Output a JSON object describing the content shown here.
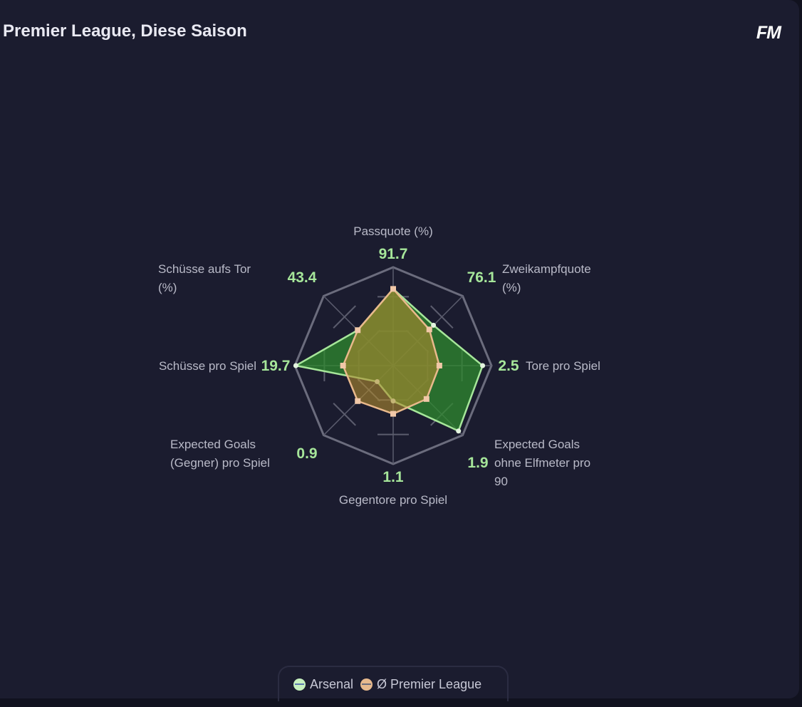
{
  "header": {
    "title": "Premier League, Diese Saison",
    "logo": "FM"
  },
  "chart_data": {
    "type": "radar",
    "axes": [
      {
        "label": [
          "Passquote (%)"
        ],
        "value": "91.7"
      },
      {
        "label": [
          "Zweikampfquote",
          "(%)"
        ],
        "value": "76.1"
      },
      {
        "label": [
          "Tore pro Spiel"
        ],
        "value": "2.5"
      },
      {
        "label": [
          "Expected Goals",
          "ohne Elfmeter pro",
          "90"
        ],
        "value": "1.9"
      },
      {
        "label": [
          "Gegentore pro Spiel"
        ],
        "value": "1.1"
      },
      {
        "label": [
          "Expected Goals",
          "(Gegner) pro Spiel"
        ],
        "value": "0.9"
      },
      {
        "label": [
          "Schüsse pro Spiel"
        ],
        "value": "19.7"
      },
      {
        "label": [
          "Schüsse aufs Tor",
          "(%)"
        ],
        "value": "43.4"
      }
    ],
    "series": [
      {
        "name": "Arsenal",
        "color": "#a6e69a",
        "fill": "#2f8a2f",
        "normalized": [
          0.78,
          0.58,
          0.91,
          0.94,
          0.36,
          0.23,
          0.99,
          0.51
        ]
      },
      {
        "name": "Ø Premier League",
        "color": "#e9b98c",
        "fill": "#b08a2e",
        "normalized": [
          0.78,
          0.52,
          0.47,
          0.48,
          0.49,
          0.51,
          0.51,
          0.51
        ]
      }
    ],
    "range": [
      0,
      1
    ]
  },
  "legend": [
    {
      "label": "Arsenal",
      "color": "#c6f0bf"
    },
    {
      "label": "Ø Premier League",
      "color": "#e7b98d"
    }
  ]
}
